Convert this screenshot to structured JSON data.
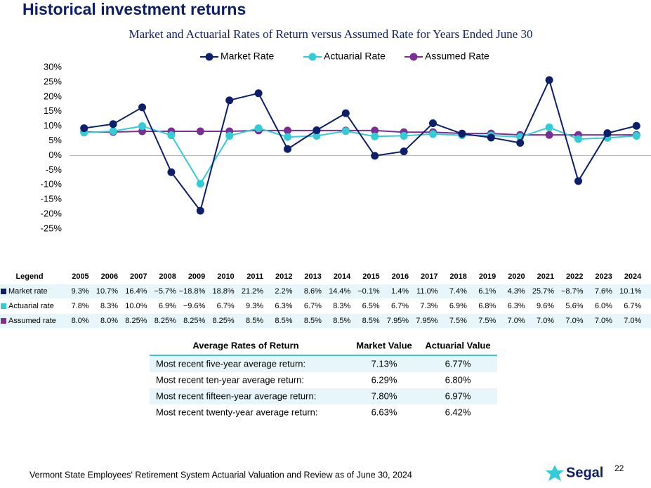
{
  "header": {
    "title": "Historical investment returns"
  },
  "chart_data": {
    "type": "line",
    "subtitle": "Market and Actuarial Rates of Return versus Assumed Rate for Years Ended June 30",
    "categories": [
      "2005",
      "2006",
      "2007",
      "2008",
      "2009",
      "2010",
      "2011",
      "2012",
      "2013",
      "2014",
      "2015",
      "2016",
      "2017",
      "2018",
      "2019",
      "2020",
      "2021",
      "2022",
      "2023",
      "2024"
    ],
    "series": [
      {
        "name": "Market Rate",
        "color": "#0d1f6b",
        "values": [
          9.3,
          10.7,
          16.4,
          -5.7,
          -18.8,
          18.8,
          21.2,
          2.2,
          8.6,
          14.4,
          -0.1,
          1.4,
          11.0,
          7.4,
          6.1,
          4.3,
          25.7,
          -8.7,
          7.6,
          10.1
        ],
        "value_labels": [
          "9.3%",
          "10.7%",
          "16.4%",
          "−5.7%",
          "−18.8%",
          "18.8%",
          "21.2%",
          "2.2%",
          "8.6%",
          "14.4%",
          "−0.1%",
          "1.4%",
          "11.0%",
          "7.4%",
          "6.1%",
          "4.3%",
          "25.7%",
          "−8.7%",
          "7.6%",
          "10.1%"
        ]
      },
      {
        "name": "Actuarial Rate",
        "color": "#33cbd6",
        "values": [
          7.8,
          8.3,
          10.0,
          6.9,
          -9.6,
          6.7,
          9.3,
          6.3,
          6.7,
          8.3,
          6.5,
          6.7,
          7.3,
          6.9,
          6.8,
          6.3,
          9.6,
          5.6,
          6.0,
          6.7
        ],
        "value_labels": [
          "7.8%",
          "8.3%",
          "10.0%",
          "6.9%",
          "−9.6%",
          "6.7%",
          "9.3%",
          "6.3%",
          "6.7%",
          "8.3%",
          "6.5%",
          "6.7%",
          "7.3%",
          "6.9%",
          "6.8%",
          "6.3%",
          "9.6%",
          "5.6%",
          "6.0%",
          "6.7%"
        ]
      },
      {
        "name": "Assumed Rate",
        "color": "#7b2f95",
        "values": [
          8.0,
          8.0,
          8.25,
          8.25,
          8.25,
          8.25,
          8.5,
          8.5,
          8.5,
          8.5,
          8.5,
          7.95,
          7.95,
          7.5,
          7.5,
          7.0,
          7.0,
          7.0,
          7.0,
          7.0
        ],
        "value_labels": [
          "8.0%",
          "8.0%",
          "8.25%",
          "8.25%",
          "8.25%",
          "8.25%",
          "8.5%",
          "8.5%",
          "8.5%",
          "8.5%",
          "8.5%",
          "7.95%",
          "7.95%",
          "7.5%",
          "7.5%",
          "7.0%",
          "7.0%",
          "7.0%",
          "7.0%",
          "7.0%"
        ]
      }
    ],
    "ylim": [
      -25,
      30
    ],
    "yticks": [
      {
        "value": 30,
        "label": "30%"
      },
      {
        "value": 25,
        "label": "25%"
      },
      {
        "value": 20,
        "label": "20%"
      },
      {
        "value": 15,
        "label": "15%"
      },
      {
        "value": 10,
        "label": "10%"
      },
      {
        "value": 5,
        "label": "5%"
      },
      {
        "value": 0,
        "label": "0%"
      },
      {
        "value": -5,
        "label": "-5%"
      },
      {
        "value": -10,
        "label": "-10%"
      },
      {
        "value": -15,
        "label": "-15%"
      },
      {
        "value": -20,
        "label": "-20%"
      },
      {
        "value": -25,
        "label": "-25%"
      }
    ],
    "grid": false
  },
  "data_table": {
    "legend_header": "Legend",
    "row_labels": [
      "Market rate",
      "Actuarial rate",
      "Assumed rate"
    ]
  },
  "averages_table": {
    "headers": [
      "Average Rates of Return",
      "Market Value",
      "Actuarial Value"
    ],
    "rows": [
      [
        "Most recent five-year average return:",
        "7.13%",
        "6.77%"
      ],
      [
        "Most recent ten-year average return:",
        "6.29%",
        "6.80%"
      ],
      [
        "Most recent fifteen-year average return:",
        "7.80%",
        "6.97%"
      ],
      [
        "Most recent twenty-year average return:",
        "6.63%",
        "6.42%"
      ]
    ]
  },
  "footer": {
    "text": "Vermont State Employees' Retirement System Actuarial Valuation and Review as of June 30, 2024",
    "logo": "Segal",
    "page": "22"
  }
}
